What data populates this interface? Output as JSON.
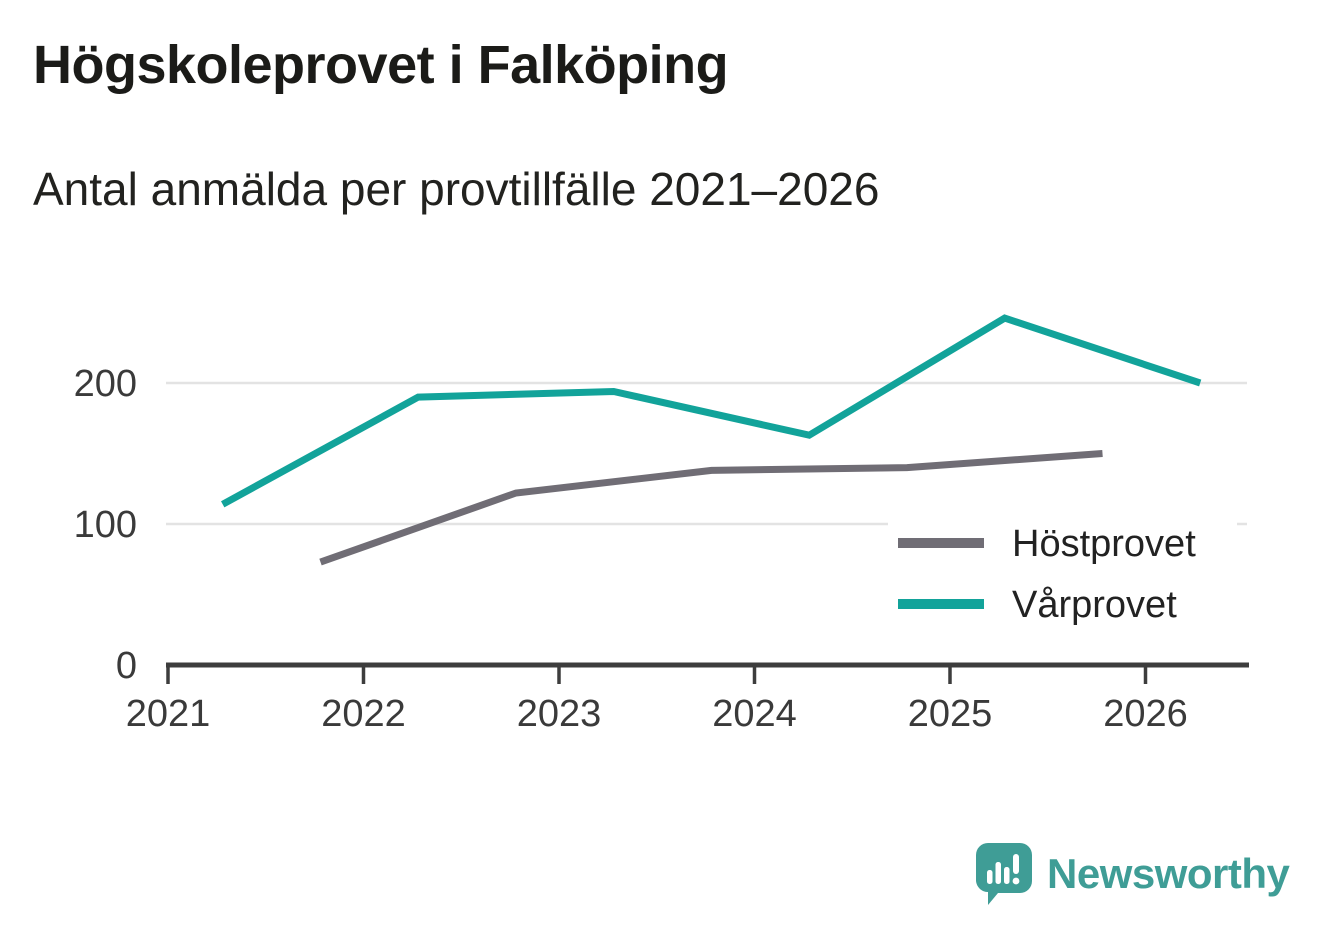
{
  "title": "Högskoleprovet i Falköping",
  "subtitle": "Antal anmälda per provtillfälle 2021–2026",
  "chart_data": {
    "type": "line",
    "title": "Högskoleprovet i Falköping",
    "subtitle": "Antal anmälda per provtillfälle 2021–2026",
    "xlabel": "",
    "ylabel": "Antal anmälda",
    "x_tick_labels": [
      "2021",
      "2022",
      "2023",
      "2024",
      "2025",
      "2026"
    ],
    "x_ticks": [
      2021,
      2022,
      2023,
      2024,
      2025,
      2026
    ],
    "y_ticks": [
      0,
      100,
      200
    ],
    "y_tick_labels": [
      "0",
      "100",
      "200"
    ],
    "xlim": [
      2021,
      2026.53
    ],
    "ylim": [
      0,
      272
    ],
    "grid": "horizontal",
    "legend_position": "inside-right-middle",
    "series": [
      {
        "name": "Höstprovet",
        "color": "#706d75",
        "x": [
          2021.78,
          2022.78,
          2023.78,
          2024.78,
          2025.78
        ],
        "values": [
          73,
          122,
          138,
          140,
          150
        ]
      },
      {
        "name": "Vårprovet",
        "color": "#12a39a",
        "x": [
          2021.28,
          2022.28,
          2023.28,
          2024.28,
          2025.28,
          2026.28
        ],
        "values": [
          114,
          190,
          194,
          163,
          246,
          200
        ]
      }
    ]
  },
  "colors": {
    "axis": "#3d3d3d",
    "tick_label": "#3a3a3a",
    "gridline": "#e3e3e3",
    "legend_text": "#222222",
    "brand_teal": "#3f9d96"
  },
  "branding": {
    "logo_text": "Newsworthy",
    "logo_icon": "speech-bubble-bar-chart-icon"
  }
}
